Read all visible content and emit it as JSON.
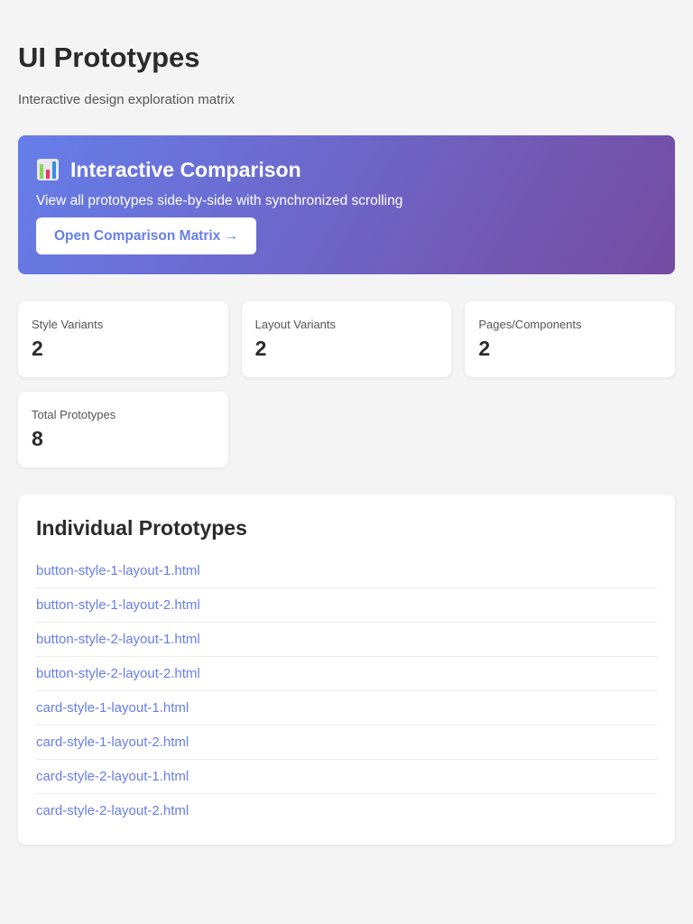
{
  "header": {
    "title": "UI Prototypes",
    "subtitle": "Interactive design exploration matrix"
  },
  "hero": {
    "icon": "bar-chart-icon",
    "title": "Interactive Comparison",
    "description": "View all prototypes side-by-side with synchronized scrolling",
    "button_label": "Open Comparison Matrix →",
    "gradient": [
      "#667eea",
      "#764ba2"
    ]
  },
  "stats": [
    {
      "label": "Style Variants",
      "value": "2"
    },
    {
      "label": "Layout Variants",
      "value": "2"
    },
    {
      "label": "Pages/Components",
      "value": "2"
    },
    {
      "label": "Total Prototypes",
      "value": "8"
    }
  ],
  "prototypes": {
    "title": "Individual Prototypes",
    "items": [
      "button-style-1-layout-1.html",
      "button-style-1-layout-2.html",
      "button-style-2-layout-1.html",
      "button-style-2-layout-2.html",
      "card-style-1-layout-1.html",
      "card-style-1-layout-2.html",
      "card-style-2-layout-1.html",
      "card-style-2-layout-2.html"
    ]
  },
  "colors": {
    "accent": "#667eea",
    "background": "#f4f4f4"
  }
}
